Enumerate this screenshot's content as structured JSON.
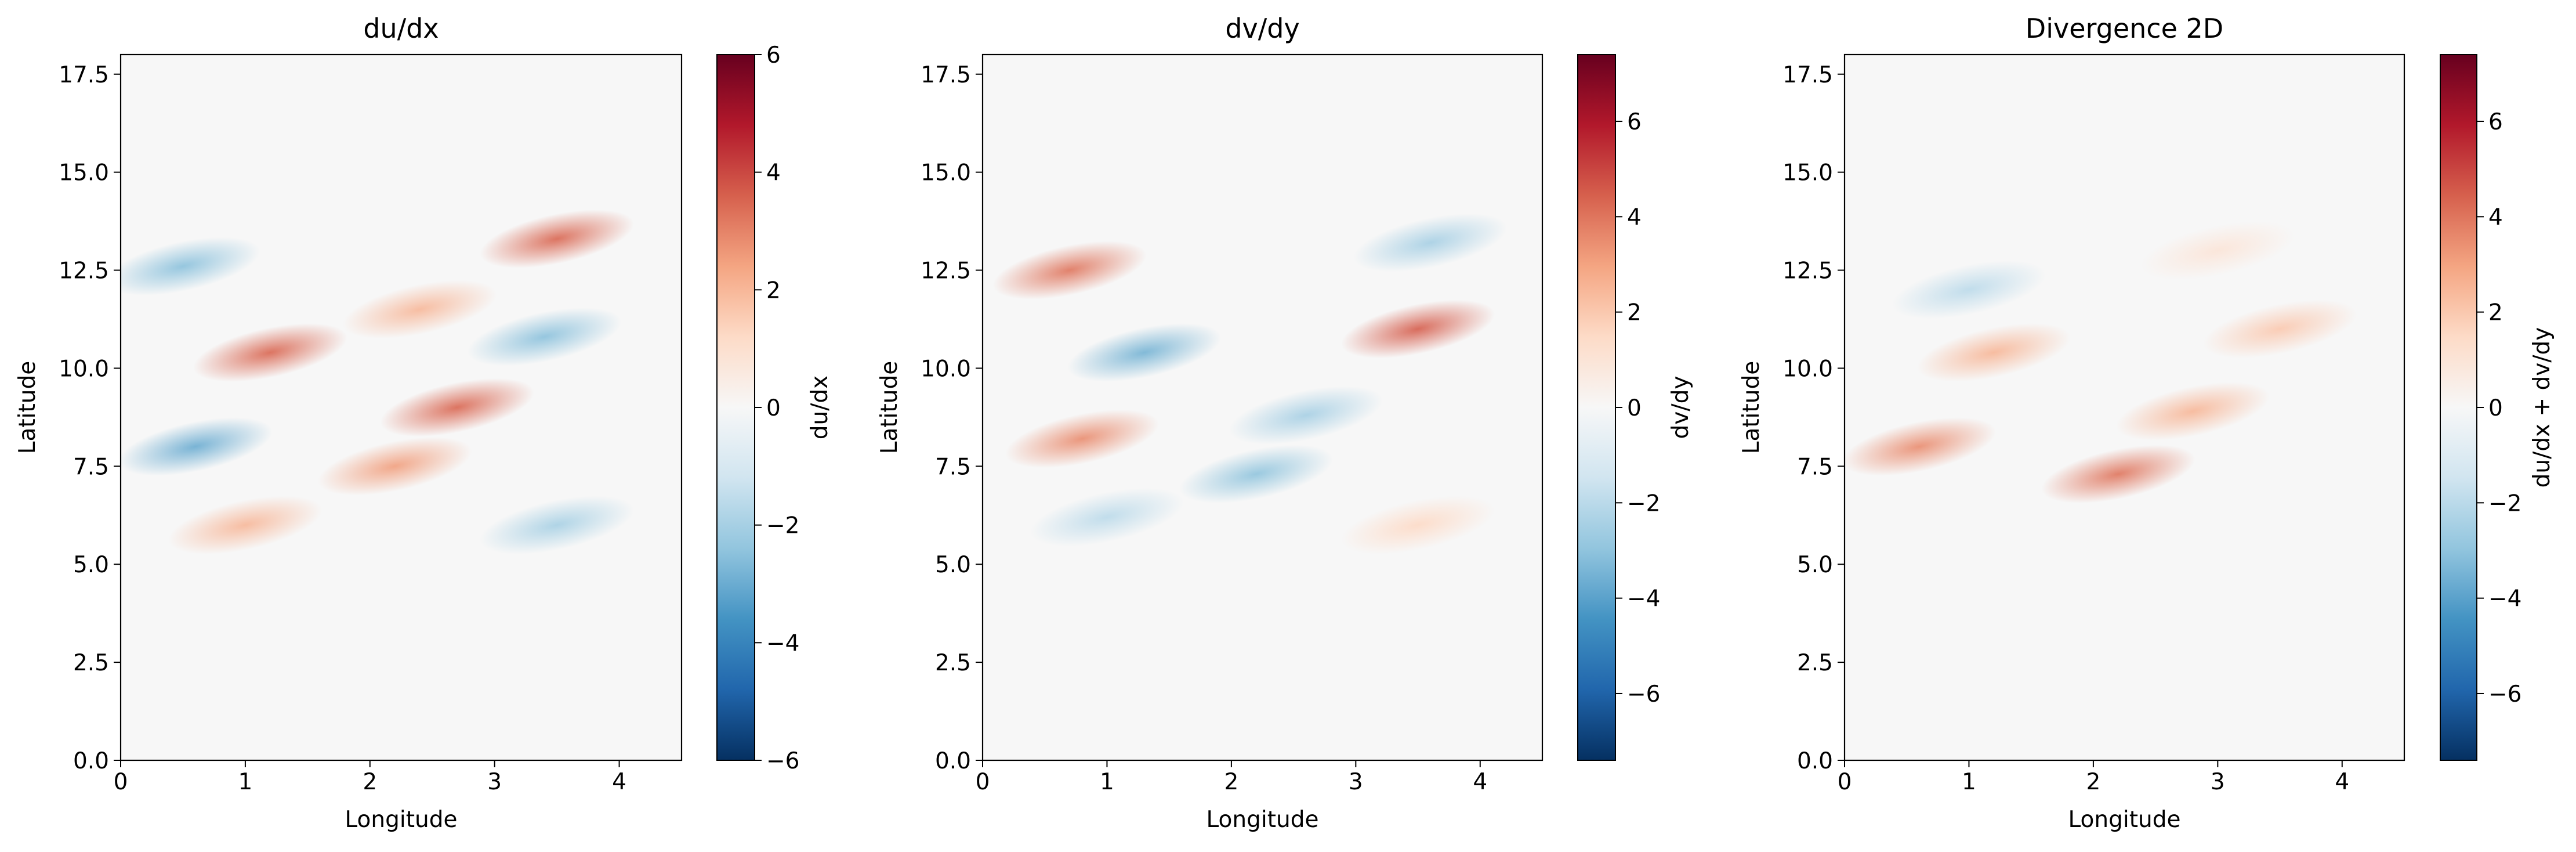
{
  "chart_data": [
    {
      "type": "heatmap",
      "title": "du/dx",
      "xlabel": "Longitude",
      "ylabel": "Latitude",
      "xlim": [
        0,
        4.5
      ],
      "ylim": [
        0,
        18
      ],
      "xticks": [
        "0",
        "1",
        "2",
        "3",
        "4"
      ],
      "yticks": [
        "0.0",
        "2.5",
        "5.0",
        "7.5",
        "10.0",
        "12.5",
        "15.0",
        "17.5"
      ],
      "colormap": "RdBu_r",
      "colorbar": {
        "label": "du/dx",
        "range": [
          -6,
          6
        ],
        "ticks": [
          "−6",
          "−4",
          "−2",
          "0",
          "2",
          "4",
          "6"
        ]
      },
      "features": [
        {
          "lon": 0.5,
          "lat": 12.6,
          "value": -2.5
        },
        {
          "lon": 1.2,
          "lat": 10.4,
          "value": 3.5
        },
        {
          "lon": 0.6,
          "lat": 8.0,
          "value": -3.0
        },
        {
          "lon": 2.2,
          "lat": 7.5,
          "value": 2.5
        },
        {
          "lon": 2.7,
          "lat": 9.0,
          "value": 3.5
        },
        {
          "lon": 3.5,
          "lat": 13.3,
          "value": 3.5
        },
        {
          "lon": 3.4,
          "lat": 10.8,
          "value": -2.5
        },
        {
          "lon": 3.5,
          "lat": 6.0,
          "value": -2.0
        },
        {
          "lon": 1.0,
          "lat": 6.0,
          "value": 2.0
        },
        {
          "lon": 2.4,
          "lat": 11.5,
          "value": 2.0
        }
      ]
    },
    {
      "type": "heatmap",
      "title": "dv/dy",
      "xlabel": "Longitude",
      "ylabel": "Latitude",
      "xlim": [
        0,
        4.5
      ],
      "ylim": [
        0,
        18
      ],
      "xticks": [
        "0",
        "1",
        "2",
        "3",
        "4"
      ],
      "yticks": [
        "0.0",
        "2.5",
        "5.0",
        "7.5",
        "10.0",
        "12.5",
        "15.0",
        "17.5"
      ],
      "colormap": "RdBu_r",
      "colorbar": {
        "label": "dv/dy",
        "range": [
          -7.4,
          7.4
        ],
        "ticks": [
          "−6",
          "−4",
          "−2",
          "0",
          "2",
          "4",
          "6"
        ]
      },
      "features": [
        {
          "lon": 0.7,
          "lat": 12.5,
          "value": 4.0
        },
        {
          "lon": 1.3,
          "lat": 10.4,
          "value": -3.5
        },
        {
          "lon": 0.8,
          "lat": 8.2,
          "value": 3.5
        },
        {
          "lon": 2.2,
          "lat": 7.3,
          "value": -3.0
        },
        {
          "lon": 2.6,
          "lat": 8.8,
          "value": -2.5
        },
        {
          "lon": 3.5,
          "lat": 11.0,
          "value": 4.5
        },
        {
          "lon": 3.6,
          "lat": 13.2,
          "value": -2.5
        },
        {
          "lon": 1.0,
          "lat": 6.2,
          "value": -2.0
        },
        {
          "lon": 3.5,
          "lat": 6.0,
          "value": 1.5
        }
      ]
    },
    {
      "type": "heatmap",
      "title": "Divergence 2D",
      "xlabel": "Longitude",
      "ylabel": "Latitude",
      "xlim": [
        0,
        4.5
      ],
      "ylim": [
        0,
        18
      ],
      "xticks": [
        "0",
        "1",
        "2",
        "3",
        "4"
      ],
      "yticks": [
        "0.0",
        "2.5",
        "5.0",
        "7.5",
        "10.0",
        "12.5",
        "15.0",
        "17.5"
      ],
      "colormap": "RdBu_r",
      "colorbar": {
        "label": "du/dx + dv/dy",
        "range": [
          -7.4,
          7.4
        ],
        "ticks": [
          "−6",
          "−4",
          "−2",
          "0",
          "2",
          "4",
          "6"
        ]
      },
      "features": [
        {
          "lon": 0.6,
          "lat": 8.0,
          "value": 3.5
        },
        {
          "lon": 2.2,
          "lat": 7.3,
          "value": 4.0
        },
        {
          "lon": 2.8,
          "lat": 8.9,
          "value": 2.5
        },
        {
          "lon": 1.2,
          "lat": 10.4,
          "value": 2.5
        },
        {
          "lon": 1.0,
          "lat": 12.0,
          "value": -2.0
        },
        {
          "lon": 3.5,
          "lat": 11.0,
          "value": 2.0
        },
        {
          "lon": 3.0,
          "lat": 13.0,
          "value": 1.0
        }
      ]
    }
  ]
}
